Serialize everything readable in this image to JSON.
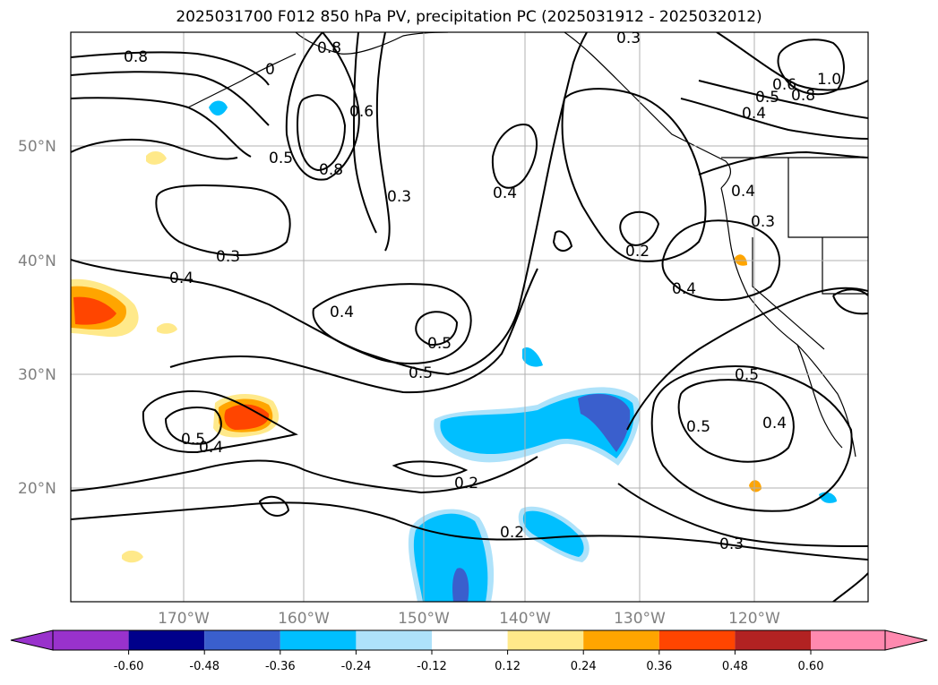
{
  "title": "2025031700 F012 850 hPa PV, precipitation PC (2025031912 - 2025032012)",
  "map": {
    "lat_labels": [
      "50°N",
      "40°N",
      "30°N",
      "20°N"
    ],
    "lon_labels": [
      "170°W",
      "160°W",
      "150°W",
      "140°W",
      "130°W",
      "120°W"
    ],
    "contour_labels": [
      "0.8",
      "0.8",
      "0",
      "0.6",
      "0.8",
      "0.3",
      "0.5",
      "0.3",
      "0.4",
      "0.4",
      "0.5",
      "0.5",
      "0.4",
      "0.5",
      "0.4",
      "0.2",
      "0.2",
      "0.3",
      "0.2",
      "0.4",
      "0.4",
      "0.3",
      "0.5",
      "0.5",
      "0.4",
      "0.3",
      "0.4",
      "0.5",
      "0.6",
      "0.8",
      "1.0"
    ],
    "colors": {
      "grid": "#b0b0b0",
      "land": "#ffffff",
      "contour": "#000000"
    }
  },
  "colorbar": {
    "labels": [
      "-0.60",
      "-0.48",
      "-0.36",
      "-0.24",
      "-0.12",
      "0.12",
      "0.24",
      "0.36",
      "0.48",
      "0.60"
    ],
    "colors": [
      "#9932CC",
      "#00008B",
      "#3A5FCD",
      "#00BFFF",
      "#AEE2FA",
      "#FFFFFF",
      "#FFE98A",
      "#FFA500",
      "#FF4500",
      "#B22222",
      "#FF89AF"
    ]
  }
}
